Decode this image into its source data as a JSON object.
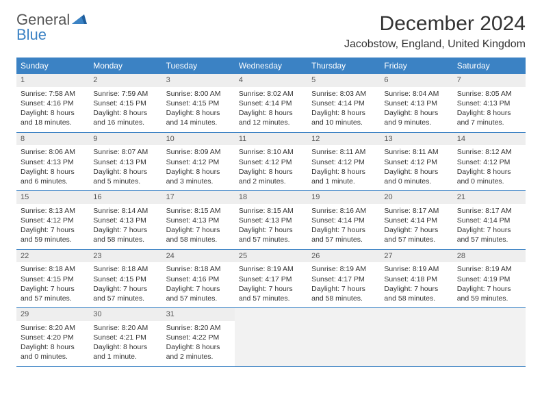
{
  "logo": {
    "part1": "General",
    "part2": "Blue"
  },
  "title": "December 2024",
  "location": "Jacobstow, England, United Kingdom",
  "colors": {
    "header_bg": "#3b82c4",
    "header_fg": "#ffffff",
    "daynum_bg": "#eeeeee",
    "rule": "#3b82c4",
    "empty_bg": "#f2f2f2"
  },
  "dayNames": [
    "Sunday",
    "Monday",
    "Tuesday",
    "Wednesday",
    "Thursday",
    "Friday",
    "Saturday"
  ],
  "days": [
    {
      "n": "1",
      "sr": "Sunrise: 7:58 AM",
      "ss": "Sunset: 4:16 PM",
      "d1": "Daylight: 8 hours",
      "d2": "and 18 minutes."
    },
    {
      "n": "2",
      "sr": "Sunrise: 7:59 AM",
      "ss": "Sunset: 4:15 PM",
      "d1": "Daylight: 8 hours",
      "d2": "and 16 minutes."
    },
    {
      "n": "3",
      "sr": "Sunrise: 8:00 AM",
      "ss": "Sunset: 4:15 PM",
      "d1": "Daylight: 8 hours",
      "d2": "and 14 minutes."
    },
    {
      "n": "4",
      "sr": "Sunrise: 8:02 AM",
      "ss": "Sunset: 4:14 PM",
      "d1": "Daylight: 8 hours",
      "d2": "and 12 minutes."
    },
    {
      "n": "5",
      "sr": "Sunrise: 8:03 AM",
      "ss": "Sunset: 4:14 PM",
      "d1": "Daylight: 8 hours",
      "d2": "and 10 minutes."
    },
    {
      "n": "6",
      "sr": "Sunrise: 8:04 AM",
      "ss": "Sunset: 4:13 PM",
      "d1": "Daylight: 8 hours",
      "d2": "and 9 minutes."
    },
    {
      "n": "7",
      "sr": "Sunrise: 8:05 AM",
      "ss": "Sunset: 4:13 PM",
      "d1": "Daylight: 8 hours",
      "d2": "and 7 minutes."
    },
    {
      "n": "8",
      "sr": "Sunrise: 8:06 AM",
      "ss": "Sunset: 4:13 PM",
      "d1": "Daylight: 8 hours",
      "d2": "and 6 minutes."
    },
    {
      "n": "9",
      "sr": "Sunrise: 8:07 AM",
      "ss": "Sunset: 4:13 PM",
      "d1": "Daylight: 8 hours",
      "d2": "and 5 minutes."
    },
    {
      "n": "10",
      "sr": "Sunrise: 8:09 AM",
      "ss": "Sunset: 4:12 PM",
      "d1": "Daylight: 8 hours",
      "d2": "and 3 minutes."
    },
    {
      "n": "11",
      "sr": "Sunrise: 8:10 AM",
      "ss": "Sunset: 4:12 PM",
      "d1": "Daylight: 8 hours",
      "d2": "and 2 minutes."
    },
    {
      "n": "12",
      "sr": "Sunrise: 8:11 AM",
      "ss": "Sunset: 4:12 PM",
      "d1": "Daylight: 8 hours",
      "d2": "and 1 minute."
    },
    {
      "n": "13",
      "sr": "Sunrise: 8:11 AM",
      "ss": "Sunset: 4:12 PM",
      "d1": "Daylight: 8 hours",
      "d2": "and 0 minutes."
    },
    {
      "n": "14",
      "sr": "Sunrise: 8:12 AM",
      "ss": "Sunset: 4:12 PM",
      "d1": "Daylight: 8 hours",
      "d2": "and 0 minutes."
    },
    {
      "n": "15",
      "sr": "Sunrise: 8:13 AM",
      "ss": "Sunset: 4:12 PM",
      "d1": "Daylight: 7 hours",
      "d2": "and 59 minutes."
    },
    {
      "n": "16",
      "sr": "Sunrise: 8:14 AM",
      "ss": "Sunset: 4:13 PM",
      "d1": "Daylight: 7 hours",
      "d2": "and 58 minutes."
    },
    {
      "n": "17",
      "sr": "Sunrise: 8:15 AM",
      "ss": "Sunset: 4:13 PM",
      "d1": "Daylight: 7 hours",
      "d2": "and 58 minutes."
    },
    {
      "n": "18",
      "sr": "Sunrise: 8:15 AM",
      "ss": "Sunset: 4:13 PM",
      "d1": "Daylight: 7 hours",
      "d2": "and 57 minutes."
    },
    {
      "n": "19",
      "sr": "Sunrise: 8:16 AM",
      "ss": "Sunset: 4:14 PM",
      "d1": "Daylight: 7 hours",
      "d2": "and 57 minutes."
    },
    {
      "n": "20",
      "sr": "Sunrise: 8:17 AM",
      "ss": "Sunset: 4:14 PM",
      "d1": "Daylight: 7 hours",
      "d2": "and 57 minutes."
    },
    {
      "n": "21",
      "sr": "Sunrise: 8:17 AM",
      "ss": "Sunset: 4:14 PM",
      "d1": "Daylight: 7 hours",
      "d2": "and 57 minutes."
    },
    {
      "n": "22",
      "sr": "Sunrise: 8:18 AM",
      "ss": "Sunset: 4:15 PM",
      "d1": "Daylight: 7 hours",
      "d2": "and 57 minutes."
    },
    {
      "n": "23",
      "sr": "Sunrise: 8:18 AM",
      "ss": "Sunset: 4:15 PM",
      "d1": "Daylight: 7 hours",
      "d2": "and 57 minutes."
    },
    {
      "n": "24",
      "sr": "Sunrise: 8:18 AM",
      "ss": "Sunset: 4:16 PM",
      "d1": "Daylight: 7 hours",
      "d2": "and 57 minutes."
    },
    {
      "n": "25",
      "sr": "Sunrise: 8:19 AM",
      "ss": "Sunset: 4:17 PM",
      "d1": "Daylight: 7 hours",
      "d2": "and 57 minutes."
    },
    {
      "n": "26",
      "sr": "Sunrise: 8:19 AM",
      "ss": "Sunset: 4:17 PM",
      "d1": "Daylight: 7 hours",
      "d2": "and 58 minutes."
    },
    {
      "n": "27",
      "sr": "Sunrise: 8:19 AM",
      "ss": "Sunset: 4:18 PM",
      "d1": "Daylight: 7 hours",
      "d2": "and 58 minutes."
    },
    {
      "n": "28",
      "sr": "Sunrise: 8:19 AM",
      "ss": "Sunset: 4:19 PM",
      "d1": "Daylight: 7 hours",
      "d2": "and 59 minutes."
    },
    {
      "n": "29",
      "sr": "Sunrise: 8:20 AM",
      "ss": "Sunset: 4:20 PM",
      "d1": "Daylight: 8 hours",
      "d2": "and 0 minutes."
    },
    {
      "n": "30",
      "sr": "Sunrise: 8:20 AM",
      "ss": "Sunset: 4:21 PM",
      "d1": "Daylight: 8 hours",
      "d2": "and 1 minute."
    },
    {
      "n": "31",
      "sr": "Sunrise: 8:20 AM",
      "ss": "Sunset: 4:22 PM",
      "d1": "Daylight: 8 hours",
      "d2": "and 2 minutes."
    }
  ],
  "trailingEmpty": 4
}
